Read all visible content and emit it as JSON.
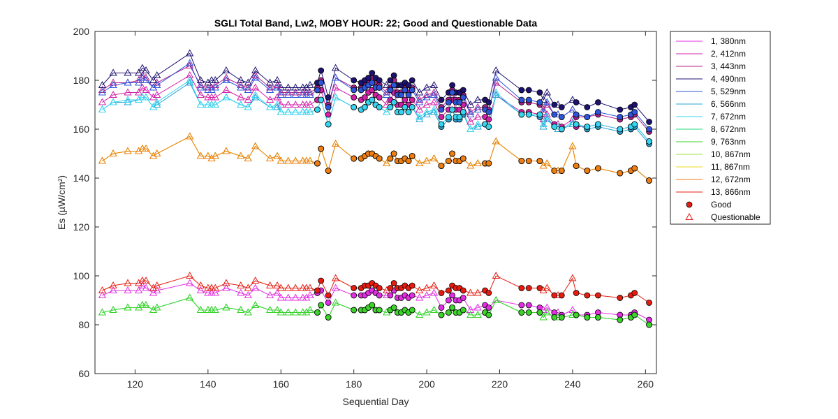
{
  "chart_data": {
    "type": "line",
    "title": "SGLI Total Band,  Lw2, MOBY HOUR: 22;  Good and Questionable Data",
    "xlabel": "Sequential Day",
    "ylabel": "Es (µW/cm²)",
    "xlim": [
      109,
      263
    ],
    "ylim": [
      60,
      200
    ],
    "xticks": [
      120,
      140,
      160,
      180,
      200,
      220,
      240,
      260
    ],
    "yticks": [
      60,
      80,
      100,
      120,
      140,
      160,
      180,
      200
    ],
    "grid": false,
    "legend_position": "outside-right",
    "x": [
      111,
      114,
      118,
      121,
      122,
      123,
      125,
      126,
      135,
      138,
      140,
      141,
      142,
      145,
      149,
      151,
      153,
      157,
      159,
      160,
      162,
      164,
      166,
      167,
      168,
      170,
      171,
      173,
      175,
      180,
      182,
      183,
      184,
      185,
      186,
      187,
      189,
      190,
      191,
      192,
      193,
      194,
      195,
      196,
      198,
      200,
      202,
      204,
      206,
      207,
      208,
      209,
      210,
      212,
      214,
      216,
      217,
      219,
      226,
      228,
      231,
      232,
      233,
      235,
      236,
      237,
      240,
      241,
      244,
      247,
      253,
      256,
      257,
      261
    ],
    "status": [
      "Q",
      "Q",
      "Q",
      "Q",
      "Q",
      "Q",
      "Q",
      "Q",
      "Q",
      "Q",
      "Q",
      "Q",
      "Q",
      "Q",
      "Q",
      "Q",
      "Q",
      "Q",
      "Q",
      "Q",
      "Q",
      "Q",
      "Q",
      "Q",
      "Q",
      "G",
      "G",
      "G",
      "Q",
      "G",
      "G",
      "G",
      "G",
      "G",
      "G",
      "G",
      "Q",
      "G",
      "G",
      "G",
      "G",
      "G",
      "G",
      "G",
      "Q",
      "Q",
      "Q",
      "G",
      "G",
      "G",
      "G",
      "G",
      "G",
      "Q",
      "Q",
      "G",
      "G",
      "Q",
      "G",
      "G",
      "G",
      "Q",
      "Q",
      "G",
      "Q",
      "G",
      "Q",
      "G",
      "G",
      "G",
      "G",
      "G",
      "G",
      "G"
    ],
    "series": [
      {
        "name": "1, 380nm",
        "color": "#e22ee2",
        "values": [
          92,
          94,
          94,
          94,
          96,
          95,
          93,
          94,
          97,
          94,
          93,
          93,
          93,
          95,
          93,
          92,
          95,
          92,
          93,
          91,
          91,
          91,
          91,
          91,
          92,
          93,
          94,
          89,
          95,
          92,
          92,
          92,
          93,
          94,
          93,
          92,
          92,
          92,
          94,
          91,
          91,
          92,
          91,
          92,
          91,
          92,
          93,
          87,
          90,
          92,
          90,
          90,
          91,
          86,
          87,
          88,
          87,
          90,
          88,
          88,
          87,
          86,
          87,
          85,
          85,
          84,
          86,
          84,
          84,
          85,
          84,
          84,
          85,
          82
        ]
      },
      {
        "name": "2, 412nm",
        "color": "#d41fa8",
        "values": [
          171,
          174,
          175,
          175,
          177,
          176,
          173,
          174,
          182,
          174,
          173,
          173,
          173,
          176,
          173,
          172,
          177,
          172,
          173,
          170,
          170,
          170,
          170,
          170,
          170,
          172,
          176,
          166,
          177,
          173,
          172,
          173,
          175,
          176,
          174,
          173,
          170,
          172,
          175,
          170,
          170,
          172,
          170,
          172,
          168,
          170,
          171,
          165,
          168,
          172,
          168,
          168,
          170,
          163,
          165,
          165,
          164,
          174,
          167,
          167,
          166,
          164,
          166,
          162,
          162,
          161,
          164,
          161,
          161,
          162,
          160,
          161,
          162,
          155
        ]
      },
      {
        "name": "3, 443nm",
        "color": "#b0228e",
        "values": [
          176,
          179,
          179,
          180,
          182,
          181,
          177,
          179,
          186,
          178,
          177,
          177,
          178,
          181,
          178,
          177,
          182,
          177,
          178,
          175,
          175,
          175,
          175,
          175,
          175,
          177,
          180,
          170,
          181,
          177,
          177,
          178,
          180,
          181,
          179,
          178,
          175,
          177,
          180,
          175,
          175,
          177,
          175,
          177,
          172,
          174,
          175,
          169,
          172,
          176,
          172,
          172,
          174,
          167,
          169,
          169,
          168,
          179,
          171,
          171,
          170,
          168,
          170,
          166,
          166,
          165,
          168,
          165,
          165,
          166,
          164,
          165,
          166,
          159
        ]
      },
      {
        "name": "4, 490nm",
        "color": "#1d1270",
        "values": [
          178,
          183,
          183,
          183,
          185,
          184,
          180,
          182,
          191,
          180,
          179,
          180,
          180,
          184,
          180,
          179,
          184,
          179,
          180,
          177,
          177,
          177,
          177,
          177,
          178,
          179,
          184,
          173,
          185,
          180,
          179,
          180,
          181,
          183,
          181,
          180,
          178,
          180,
          182,
          178,
          178,
          179,
          178,
          180,
          175,
          177,
          178,
          172,
          175,
          178,
          175,
          175,
          176,
          170,
          172,
          172,
          171,
          184,
          176,
          176,
          175,
          172,
          175,
          170,
          170,
          169,
          172,
          171,
          169,
          171,
          168,
          169,
          170,
          163
        ]
      },
      {
        "name": "5, 529nm",
        "color": "#2c55d9",
        "values": [
          175,
          178,
          179,
          179,
          181,
          180,
          177,
          178,
          187,
          177,
          176,
          176,
          177,
          180,
          177,
          176,
          181,
          176,
          177,
          174,
          174,
          174,
          174,
          174,
          174,
          176,
          179,
          169,
          181,
          176,
          176,
          177,
          178,
          179,
          177,
          177,
          174,
          176,
          178,
          174,
          174,
          176,
          174,
          176,
          171,
          173,
          174,
          168,
          171,
          175,
          171,
          171,
          173,
          166,
          168,
          168,
          167,
          181,
          172,
          172,
          171,
          167,
          171,
          166,
          166,
          165,
          168,
          166,
          165,
          167,
          165,
          166,
          167,
          160
        ]
      },
      {
        "name": "6, 566nm",
        "color": "#27a3d6",
        "values": [
          168,
          171,
          171,
          172,
          173,
          173,
          169,
          170,
          179,
          170,
          170,
          170,
          170,
          173,
          170,
          169,
          173,
          169,
          169,
          167,
          167,
          167,
          167,
          167,
          167,
          168,
          172,
          162,
          173,
          169,
          168,
          169,
          171,
          172,
          170,
          169,
          167,
          169,
          171,
          167,
          167,
          169,
          167,
          169,
          164,
          166,
          167,
          161,
          164,
          168,
          164,
          164,
          166,
          160,
          161,
          162,
          161,
          174,
          166,
          166,
          165,
          161,
          164,
          161,
          160,
          160,
          162,
          162,
          160,
          161,
          159,
          160,
          161,
          154
        ]
      },
      {
        "name": "7, 672nm",
        "color": "#35d4f0",
        "values": [
          168,
          171,
          172,
          172,
          173,
          173,
          169,
          171,
          180,
          170,
          170,
          170,
          170,
          173,
          170,
          169,
          174,
          169,
          170,
          167,
          167,
          167,
          167,
          167,
          167,
          168,
          172,
          162,
          173,
          169,
          168,
          169,
          171,
          172,
          170,
          169,
          167,
          169,
          171,
          167,
          167,
          169,
          167,
          169,
          165,
          167,
          168,
          162,
          165,
          168,
          165,
          165,
          167,
          160,
          162,
          162,
          161,
          175,
          166,
          166,
          166,
          162,
          165,
          161,
          161,
          160,
          163,
          162,
          161,
          162,
          160,
          161,
          162,
          155
        ]
      },
      {
        "name": "8, 672nm",
        "color": "#1fd87a",
        "values": [
          85,
          86,
          87,
          87,
          88,
          88,
          86,
          87,
          91,
          86,
          86,
          86,
          86,
          87,
          86,
          85,
          88,
          86,
          86,
          85,
          85,
          85,
          85,
          85,
          86,
          85,
          88,
          83,
          89,
          86,
          86,
          86,
          87,
          88,
          86,
          86,
          85,
          86,
          87,
          85,
          85,
          86,
          85,
          86,
          84,
          85,
          86,
          84,
          85,
          87,
          85,
          85,
          86,
          84,
          84,
          85,
          84,
          90,
          85,
          85,
          85,
          83,
          85,
          83,
          83,
          83,
          84,
          84,
          83,
          83,
          82,
          83,
          84,
          80
        ]
      },
      {
        "name": "9, 763nm",
        "color": "#3cd32a",
        "values": [
          85,
          86,
          87,
          87,
          88,
          88,
          86,
          87,
          91,
          86,
          86,
          86,
          86,
          87,
          86,
          85,
          88,
          86,
          86,
          85,
          85,
          85,
          85,
          85,
          86,
          85,
          88,
          83,
          89,
          86,
          86,
          86,
          87,
          88,
          86,
          86,
          85,
          86,
          87,
          85,
          85,
          86,
          85,
          86,
          84,
          85,
          86,
          84,
          85,
          87,
          85,
          85,
          86,
          84,
          84,
          85,
          84,
          90,
          85,
          85,
          85,
          83,
          85,
          83,
          83,
          83,
          84,
          84,
          83,
          83,
          82,
          83,
          84,
          80
        ]
      },
      {
        "name": "10, 867nm",
        "color": "#9ce03a",
        "values": [
          147,
          150,
          151,
          151,
          152,
          152,
          149,
          150,
          157,
          149,
          149,
          148,
          149,
          151,
          149,
          148,
          153,
          148,
          149,
          147,
          147,
          147,
          147,
          147,
          147,
          146,
          152,
          143,
          154,
          148,
          148,
          149,
          150,
          150,
          149,
          148,
          146,
          148,
          150,
          147,
          147,
          148,
          147,
          149,
          146,
          147,
          148,
          145,
          147,
          150,
          147,
          147,
          148,
          145,
          146,
          146,
          146,
          155,
          147,
          147,
          147,
          145,
          146,
          143,
          143,
          143,
          153,
          145,
          143,
          144,
          142,
          143,
          144,
          139
        ]
      },
      {
        "name": "11, 867nm",
        "color": "#e8d820",
        "values": [
          147,
          150,
          151,
          151,
          152,
          152,
          149,
          150,
          157,
          149,
          149,
          148,
          149,
          151,
          149,
          148,
          153,
          148,
          149,
          147,
          147,
          147,
          147,
          147,
          147,
          146,
          152,
          143,
          154,
          148,
          148,
          149,
          150,
          150,
          149,
          148,
          146,
          148,
          150,
          147,
          147,
          148,
          147,
          149,
          146,
          147,
          148,
          145,
          147,
          150,
          147,
          147,
          148,
          145,
          146,
          146,
          146,
          155,
          147,
          147,
          147,
          145,
          146,
          143,
          143,
          143,
          153,
          145,
          143,
          144,
          142,
          143,
          144,
          139
        ]
      },
      {
        "name": "12, 672nm",
        "color": "#ee7d12",
        "values": [
          147,
          150,
          151,
          151,
          152,
          152,
          149,
          150,
          157,
          149,
          149,
          148,
          149,
          151,
          149,
          148,
          153,
          148,
          149,
          147,
          147,
          147,
          147,
          147,
          147,
          146,
          152,
          143,
          154,
          148,
          148,
          149,
          150,
          150,
          149,
          148,
          146,
          148,
          150,
          147,
          147,
          148,
          147,
          149,
          146,
          147,
          148,
          145,
          147,
          150,
          147,
          147,
          148,
          145,
          146,
          146,
          146,
          155,
          147,
          147,
          147,
          145,
          146,
          143,
          143,
          143,
          153,
          145,
          143,
          144,
          142,
          143,
          144,
          139
        ]
      },
      {
        "name": "13, 866nm",
        "color": "#e61c10",
        "values": [
          94,
          96,
          97,
          97,
          98,
          98,
          95,
          96,
          100,
          96,
          95,
          95,
          95,
          97,
          96,
          95,
          98,
          96,
          96,
          95,
          95,
          95,
          95,
          95,
          95,
          94,
          98,
          92,
          99,
          95,
          95,
          96,
          96,
          97,
          96,
          95,
          94,
          95,
          97,
          95,
          95,
          96,
          95,
          96,
          94,
          95,
          96,
          93,
          94,
          96,
          95,
          95,
          94,
          93,
          93,
          94,
          93,
          100,
          95,
          95,
          95,
          94,
          95,
          92,
          92,
          92,
          99,
          93,
          92,
          92,
          91,
          92,
          93,
          89
        ]
      }
    ],
    "legend_markers": [
      {
        "name": "Good",
        "marker": "circle",
        "color": "#e61c10"
      },
      {
        "name": "Questionable",
        "marker": "triangle",
        "color": "#e61c10"
      }
    ]
  }
}
